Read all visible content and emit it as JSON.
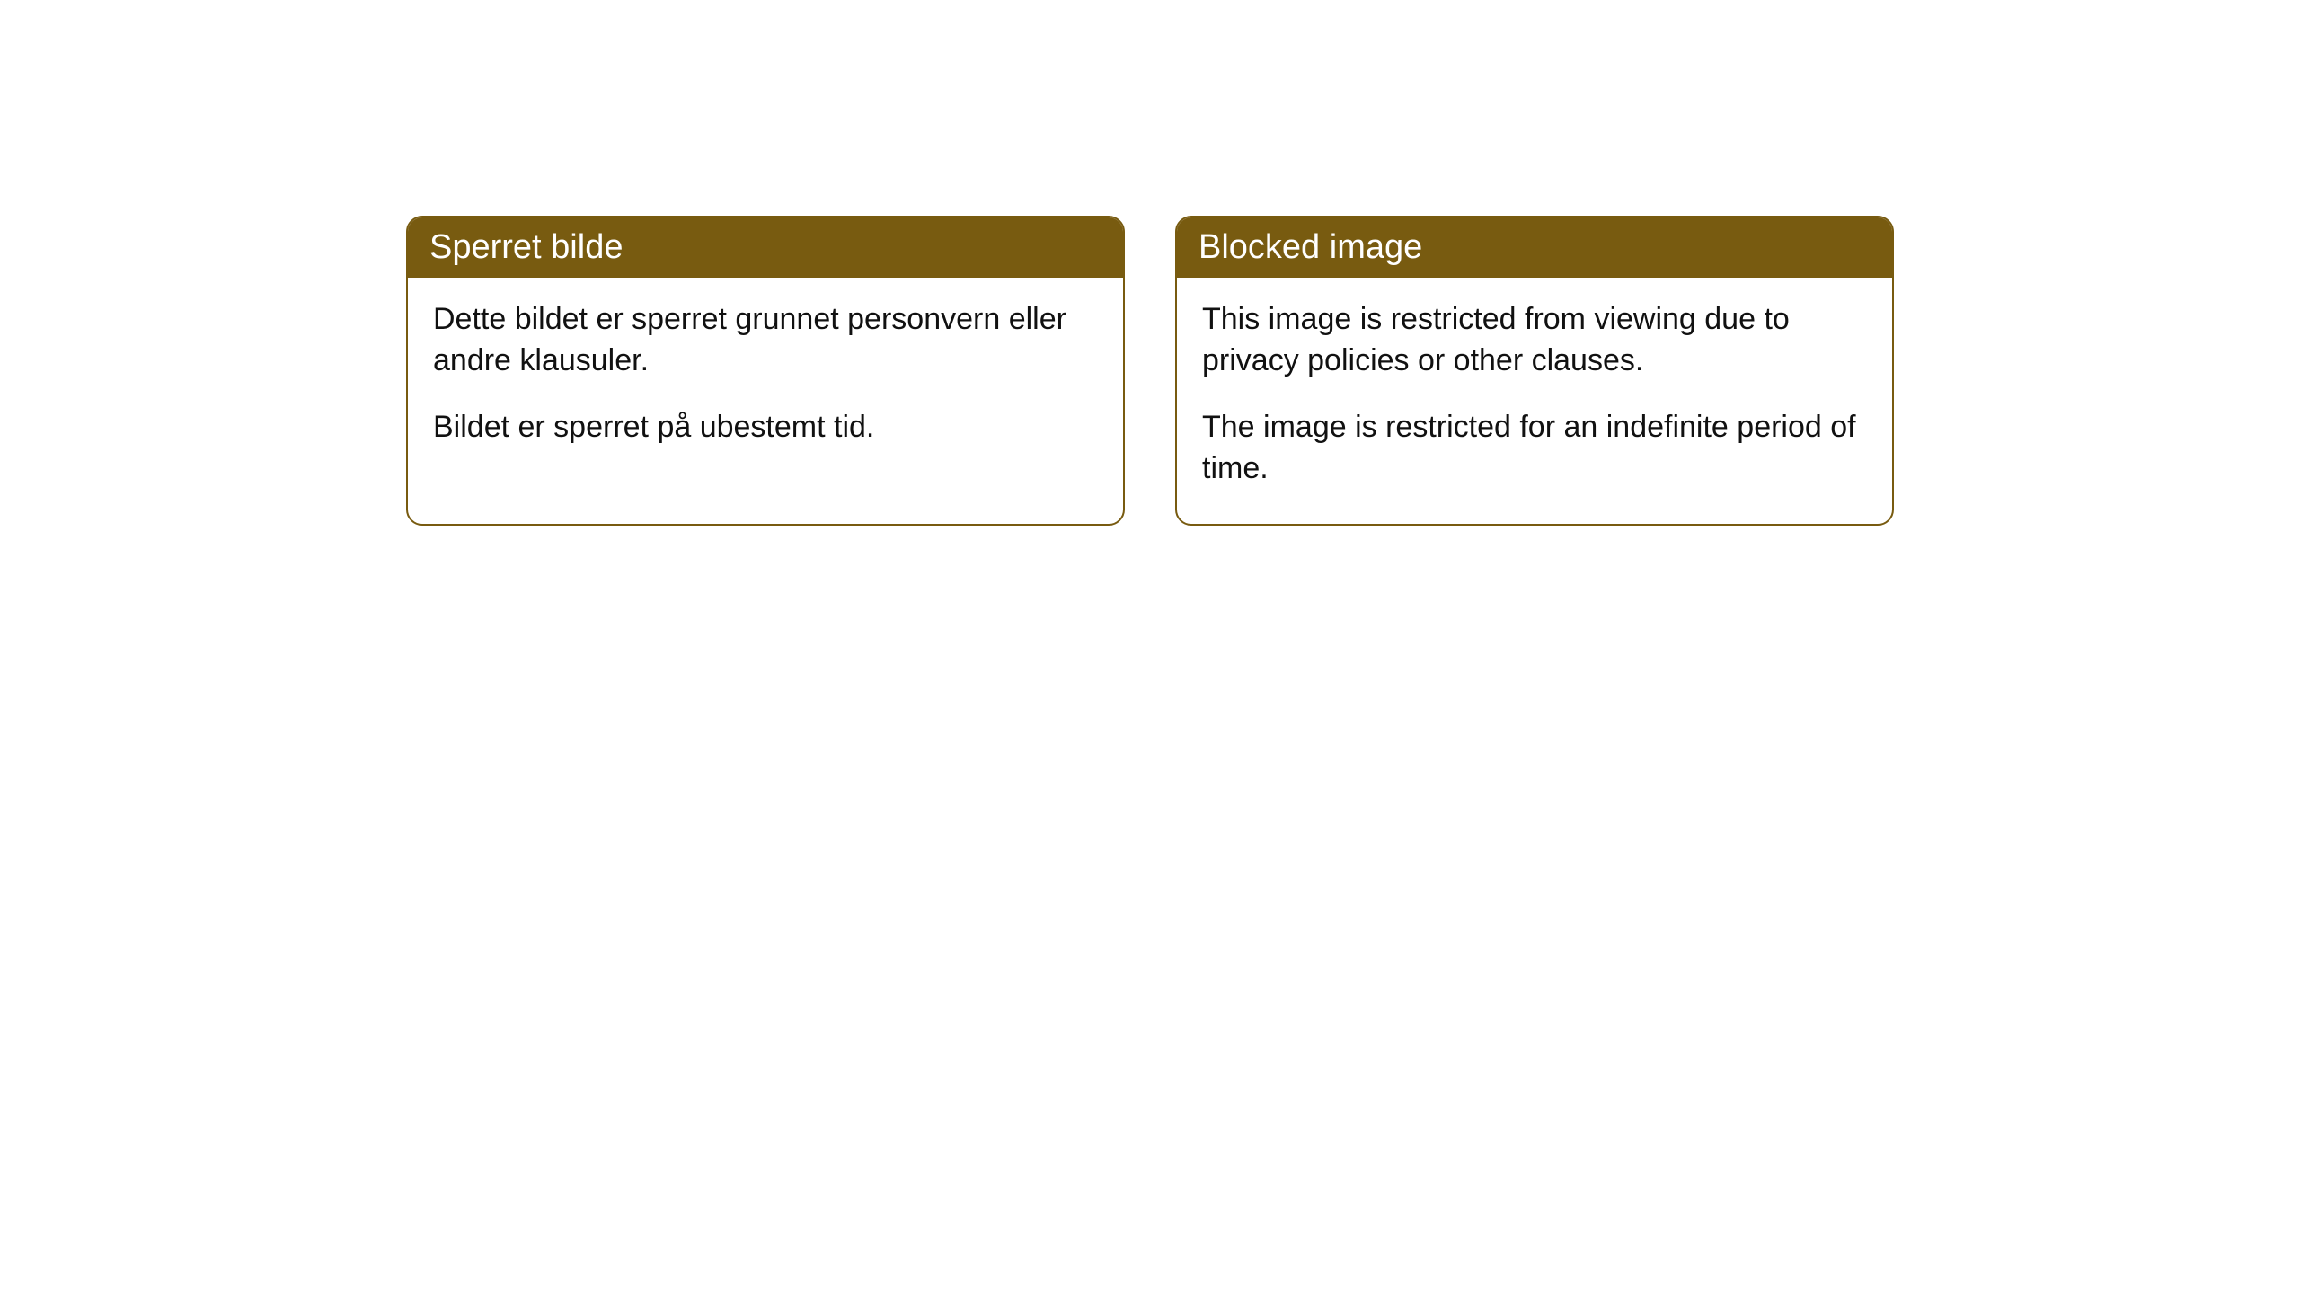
{
  "cards": [
    {
      "title": "Sperret bilde",
      "paragraph1": "Dette bildet er sperret grunnet personvern eller andre klausuler.",
      "paragraph2": "Bildet er sperret på ubestemt tid."
    },
    {
      "title": "Blocked image",
      "paragraph1": "This image is restricted from viewing due to privacy policies or other clauses.",
      "paragraph2": "The image is restricted for an indefinite period of time."
    }
  ],
  "style": {
    "header_background": "#785b10",
    "header_text_color": "#ffffff",
    "border_color": "#785b10",
    "body_background": "#ffffff",
    "body_text_color": "#111111",
    "border_radius": 18,
    "title_fontsize": 38,
    "body_fontsize": 34
  }
}
